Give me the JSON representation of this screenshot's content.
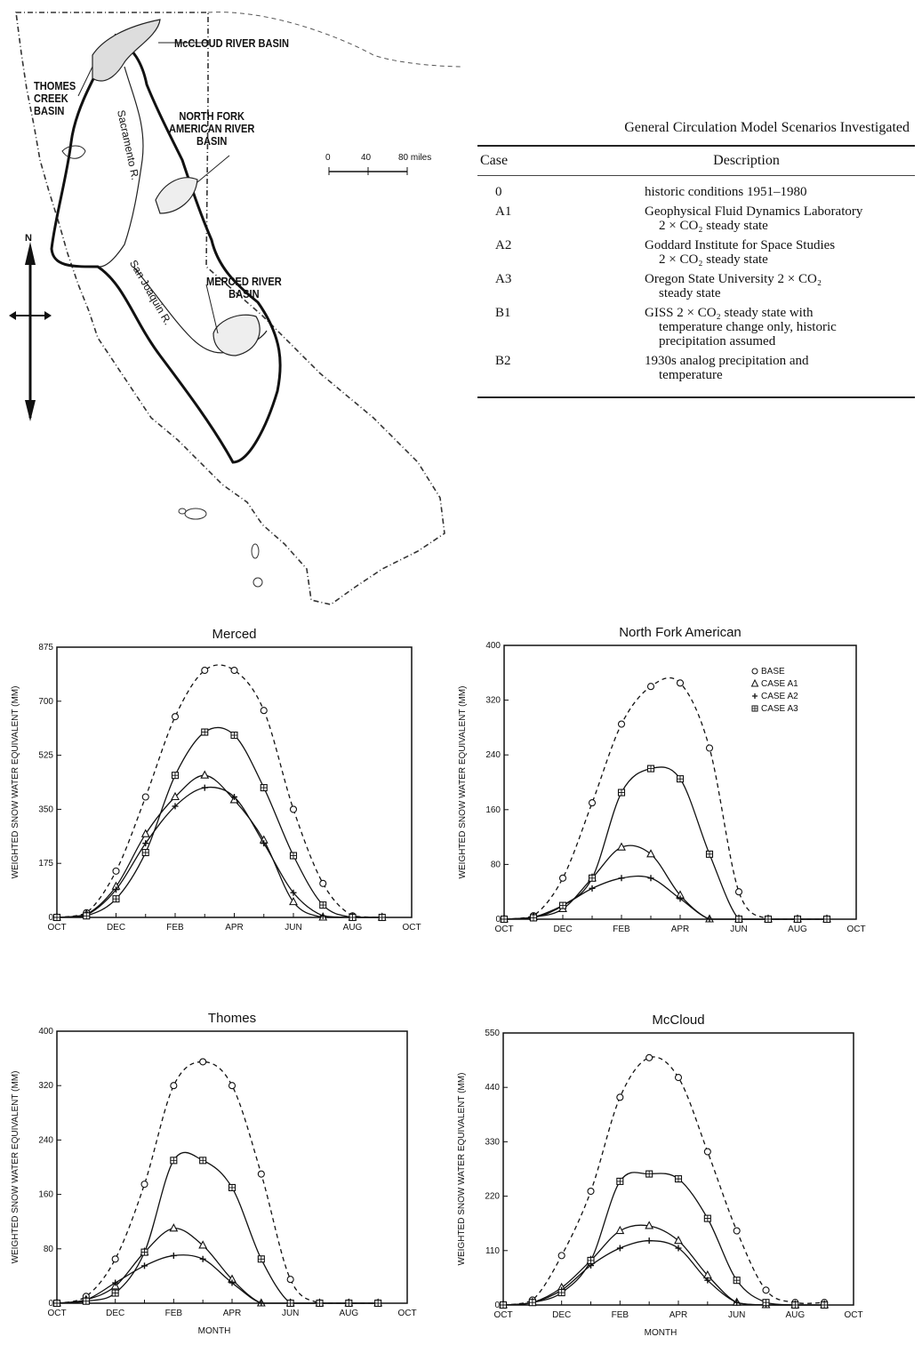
{
  "map": {
    "labels": {
      "mccloud": "McCLOUD RIVER BASIN",
      "thomes": "THOMES\nCREEK\nBASIN",
      "north_fork": "NORTH FORK\nAMERICAN RIVER\nBASIN",
      "merced": "MERCED RIVER\nBASIN",
      "sacramento": "Sacramento R.",
      "san_joaquin": "San Joaquin R."
    },
    "scale": {
      "ticks": [
        "0",
        "40",
        "80 miles"
      ]
    },
    "north": "N"
  },
  "table": {
    "title": "General Circulation Model Scenarios Investigated",
    "headers": {
      "case": "Case",
      "description": "Description"
    },
    "rows": [
      {
        "case": "0",
        "desc1": "historic conditions 1951–1980",
        "desc2": ""
      },
      {
        "case": "A1",
        "desc1": "Geophysical Fluid Dynamics Laboratory",
        "desc2": "2 × CO₂ steady state"
      },
      {
        "case": "A2",
        "desc1": "Goddard Institute for Space Studies",
        "desc2": "2 × CO₂ steady state"
      },
      {
        "case": "A3",
        "desc1": "Oregon State University 2 × CO₂",
        "desc2": "steady state"
      },
      {
        "case": "B1",
        "desc1": "GISS 2 × CO₂ steady state with",
        "desc2": "temperature change only, historic",
        "desc3": "precipitation assumed"
      },
      {
        "case": "B2",
        "desc1": "1930s analog precipitation and",
        "desc2": "temperature"
      }
    ]
  },
  "chart_data": [
    {
      "type": "line",
      "title": "Merced",
      "ylabel": "WEIGHTED SNOW WATER EQUIVALENT (MM)",
      "xlabel": "",
      "x_ticks": [
        "OCT",
        "DEC",
        "FEB",
        "APR",
        "JUN",
        "AUG",
        "OCT"
      ],
      "y_ticks": [
        "0",
        "175",
        "350",
        "525",
        "700",
        "875"
      ],
      "ylim": [
        0,
        875
      ],
      "x": [
        "OCT",
        "NOV",
        "DEC",
        "JAN",
        "FEB",
        "MAR",
        "APR",
        "MAY",
        "JUN",
        "JUL",
        "AUG",
        "SEP"
      ],
      "series": [
        {
          "name": "BASE",
          "marker": "circle",
          "dash": true,
          "values": [
            0,
            15,
            150,
            390,
            650,
            800,
            800,
            670,
            350,
            110,
            5,
            0
          ]
        },
        {
          "name": "CASE A1",
          "marker": "triangle",
          "dash": false,
          "values": [
            0,
            10,
            100,
            270,
            390,
            460,
            380,
            250,
            50,
            0,
            0,
            0
          ]
        },
        {
          "name": "CASE A2",
          "marker": "plus",
          "dash": false,
          "values": [
            0,
            8,
            90,
            240,
            360,
            420,
            390,
            240,
            80,
            5,
            0,
            0
          ]
        },
        {
          "name": "CASE A3",
          "marker": "boxplus",
          "dash": false,
          "values": [
            0,
            5,
            60,
            210,
            460,
            600,
            590,
            420,
            200,
            40,
            0,
            0
          ]
        }
      ]
    },
    {
      "type": "line",
      "title": "North Fork American",
      "ylabel": "WEIGHTED SNOW WATER EQUIVALENT (MM)",
      "xlabel": "",
      "x_ticks": [
        "OCT",
        "DEC",
        "FEB",
        "APR",
        "JUN",
        "AUG",
        "OCT"
      ],
      "y_ticks": [
        "0",
        "80",
        "160",
        "240",
        "320",
        "400"
      ],
      "ylim": [
        0,
        400
      ],
      "legend": [
        "BASE",
        "CASE A1",
        "CASE A2",
        "CASE A3"
      ],
      "x": [
        "OCT",
        "NOV",
        "DEC",
        "JAN",
        "FEB",
        "MAR",
        "APR",
        "MAY",
        "JUN",
        "JUL",
        "AUG",
        "SEP"
      ],
      "series": [
        {
          "name": "BASE",
          "marker": "circle",
          "dash": true,
          "values": [
            0,
            5,
            60,
            170,
            285,
            340,
            345,
            250,
            40,
            0,
            0,
            0
          ]
        },
        {
          "name": "CASE A1",
          "marker": "triangle",
          "dash": false,
          "values": [
            0,
            3,
            15,
            60,
            105,
            95,
            35,
            0,
            0,
            0,
            0,
            0
          ]
        },
        {
          "name": "CASE A2",
          "marker": "plus",
          "dash": false,
          "values": [
            0,
            3,
            20,
            45,
            60,
            60,
            30,
            0,
            0,
            0,
            0,
            0
          ]
        },
        {
          "name": "CASE A3",
          "marker": "boxplus",
          "dash": false,
          "values": [
            0,
            2,
            20,
            60,
            185,
            220,
            205,
            95,
            0,
            0,
            0,
            0
          ]
        }
      ]
    },
    {
      "type": "line",
      "title": "Thomes",
      "ylabel": "WEIGHTED SNOW WATER EQUIVALENT (MM)",
      "xlabel": "MONTH",
      "x_ticks": [
        "OCT",
        "DEC",
        "FEB",
        "APR",
        "JUN",
        "AUG",
        "OCT"
      ],
      "y_ticks": [
        "0",
        "80",
        "160",
        "240",
        "320",
        "400"
      ],
      "ylim": [
        0,
        400
      ],
      "x": [
        "OCT",
        "NOV",
        "DEC",
        "JAN",
        "FEB",
        "MAR",
        "APR",
        "MAY",
        "JUN",
        "JUL",
        "AUG",
        "SEP"
      ],
      "series": [
        {
          "name": "BASE",
          "marker": "circle",
          "dash": true,
          "values": [
            0,
            10,
            65,
            175,
            320,
            355,
            320,
            190,
            35,
            0,
            0,
            0
          ]
        },
        {
          "name": "CASE A1",
          "marker": "triangle",
          "dash": false,
          "values": [
            0,
            5,
            25,
            75,
            110,
            85,
            35,
            0,
            0,
            0,
            0,
            0
          ]
        },
        {
          "name": "CASE A2",
          "marker": "plus",
          "dash": false,
          "values": [
            0,
            5,
            30,
            55,
            70,
            65,
            30,
            0,
            0,
            0,
            0,
            0
          ]
        },
        {
          "name": "CASE A3",
          "marker": "boxplus",
          "dash": false,
          "values": [
            0,
            3,
            15,
            75,
            210,
            210,
            170,
            65,
            0,
            0,
            0,
            0
          ]
        }
      ]
    },
    {
      "type": "line",
      "title": "McCloud",
      "ylabel": "WEIGHTED SNOW WATER EQUIVALENT (MM)",
      "xlabel": "MONTH",
      "x_ticks": [
        "OCT",
        "DEC",
        "FEB",
        "APR",
        "JUN",
        "AUG",
        "OCT"
      ],
      "y_ticks": [
        "0",
        "110",
        "220",
        "330",
        "440",
        "550"
      ],
      "ylim": [
        0,
        550
      ],
      "x": [
        "OCT",
        "NOV",
        "DEC",
        "JAN",
        "FEB",
        "MAR",
        "APR",
        "MAY",
        "JUN",
        "JUL",
        "AUG",
        "SEP"
      ],
      "series": [
        {
          "name": "BASE",
          "marker": "circle",
          "dash": true,
          "values": [
            0,
            10,
            100,
            230,
            420,
            500,
            460,
            310,
            150,
            30,
            5,
            5
          ]
        },
        {
          "name": "CASE A1",
          "marker": "triangle",
          "dash": false,
          "values": [
            0,
            5,
            35,
            90,
            150,
            160,
            130,
            60,
            5,
            0,
            0,
            0
          ]
        },
        {
          "name": "CASE A2",
          "marker": "plus",
          "dash": false,
          "values": [
            0,
            5,
            30,
            80,
            115,
            130,
            115,
            50,
            5,
            0,
            0,
            0
          ]
        },
        {
          "name": "CASE A3",
          "marker": "boxplus",
          "dash": false,
          "values": [
            0,
            5,
            25,
            90,
            250,
            265,
            255,
            175,
            50,
            5,
            0,
            0
          ]
        }
      ]
    }
  ]
}
